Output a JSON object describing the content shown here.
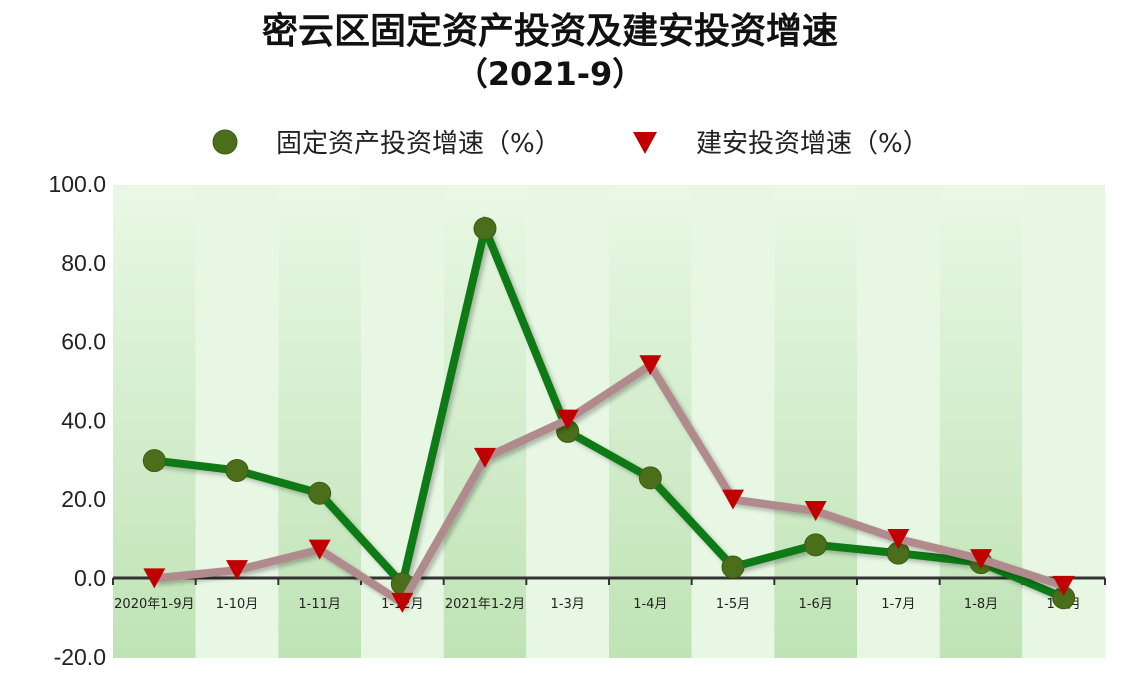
{
  "chart_data": {
    "type": "line",
    "title": "密云区固定资产投资及建安投资增速",
    "subtitle": "（2021-9）",
    "categories": [
      "2020年1-9月",
      "1-10月",
      "1-11月",
      "1-12月",
      "2021年1-2月",
      "1-3月",
      "1-4月",
      "1-5月",
      "1-6月",
      "1-7月",
      "1-8月",
      "1-9月"
    ],
    "y_ticks": [
      "100.0",
      "80.0",
      "60.0",
      "40.0",
      "20.0",
      "0.0",
      "-20.0"
    ],
    "ylim": [
      -20,
      100
    ],
    "grid": false,
    "legend_position": "top",
    "series": [
      {
        "name": "固定资产投资增速（%）",
        "color": "#0d7a12",
        "marker": "circle",
        "marker_color": "#4a6e1a",
        "values": [
          29.8,
          27.3,
          21.5,
          -1.5,
          88.7,
          37.2,
          25.4,
          2.8,
          8.4,
          6.3,
          3.9,
          -5.0
        ]
      },
      {
        "name": "建安投资增速（%）",
        "color": "#b08a8c",
        "marker": "triangle-down",
        "marker_color": "#c00000",
        "values": [
          -0.1,
          2.0,
          7.2,
          -6.3,
          30.5,
          40.2,
          54.0,
          19.9,
          17.0,
          9.9,
          4.8,
          -2.0
        ]
      }
    ],
    "band_colors": [
      "#c8e8c0",
      "#e8f7e4"
    ]
  }
}
